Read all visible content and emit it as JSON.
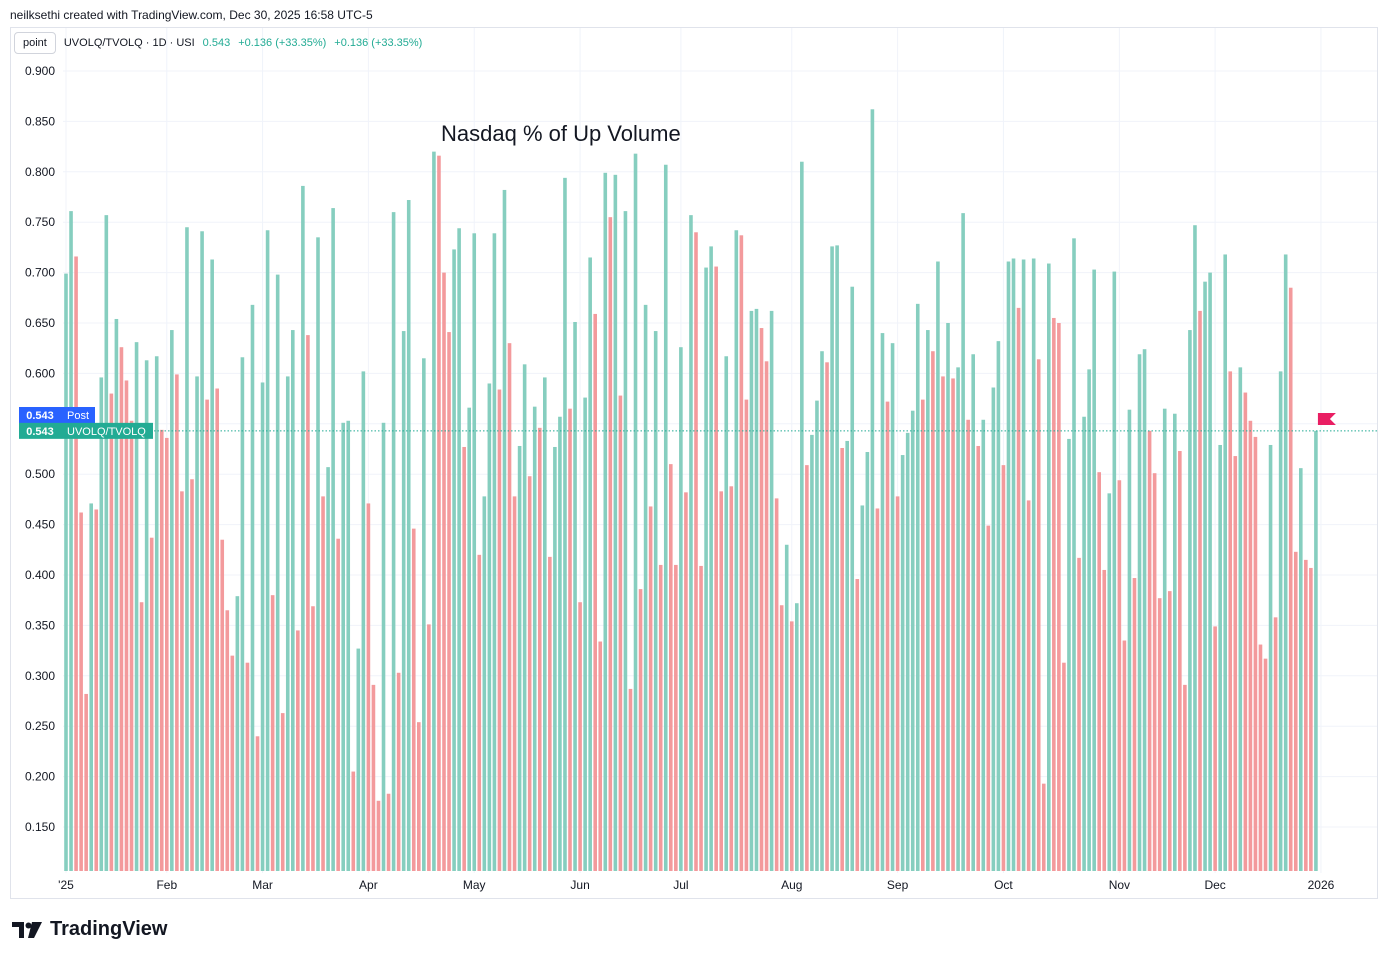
{
  "header": {
    "attribution": "neilksethi created with TradingView.com, Dec 30, 2025 16:58 UTC-5"
  },
  "legend": {
    "button": "point",
    "symbol": "UVOLQ/TVOLQ · 1D · USI",
    "value": "0.543",
    "change1": "+0.136 (+33.35%)",
    "change2": "+0.136 (+33.35%)"
  },
  "footer": {
    "brand": "TradingView"
  },
  "labels": {
    "post_value": "0.543",
    "post_label": "Post",
    "last_value": "0.543",
    "last_label": "UVOLQ/TVOLQ"
  },
  "colors": {
    "up": "#86cebf",
    "down": "#f39a9c",
    "last_line": "#22ab94",
    "post_badge": "#2962ff",
    "flag": "#e91e63"
  },
  "chart_data": {
    "type": "bar",
    "title": "Nasdaq % of Up Volume",
    "xlabel": "",
    "ylabel": "",
    "ylim": [
      0.11,
      0.91
    ],
    "y_ticks": [
      "0.900",
      "0.850",
      "0.800",
      "0.750",
      "0.700",
      "0.650",
      "0.600",
      "0.550",
      "0.500",
      "0.450",
      "0.400",
      "0.350",
      "0.300",
      "0.250",
      "0.200",
      "0.150"
    ],
    "x_ticks": [
      {
        "label": "'25",
        "index": 0
      },
      {
        "label": "Feb",
        "index": 20
      },
      {
        "label": "Mar",
        "index": 39
      },
      {
        "label": "Apr",
        "index": 60
      },
      {
        "label": "May",
        "index": 81
      },
      {
        "label": "Jun",
        "index": 102
      },
      {
        "label": "Jul",
        "index": 122
      },
      {
        "label": "Aug",
        "index": 144
      },
      {
        "label": "Sep",
        "index": 165
      },
      {
        "label": "Oct",
        "index": 186
      },
      {
        "label": "Nov",
        "index": 209
      },
      {
        "label": "Dec",
        "index": 228
      },
      {
        "label": "2026",
        "index": 249
      }
    ],
    "last_value": 0.543,
    "grid": true,
    "values": [
      0.699,
      0.761,
      0.716,
      0.462,
      0.282,
      0.471,
      0.465,
      0.596,
      0.757,
      0.58,
      0.654,
      0.626,
      0.593,
      0.553,
      0.631,
      0.373,
      0.613,
      0.437,
      0.617,
      0.544,
      0.536,
      0.643,
      0.599,
      0.483,
      0.745,
      0.495,
      0.597,
      0.741,
      0.574,
      0.713,
      0.585,
      0.435,
      0.365,
      0.32,
      0.379,
      0.616,
      0.313,
      0.668,
      0.24,
      0.591,
      0.742,
      0.38,
      0.698,
      0.263,
      0.597,
      0.643,
      0.345,
      0.786,
      0.638,
      0.369,
      0.735,
      0.478,
      0.507,
      0.764,
      0.436,
      0.551,
      0.553,
      0.205,
      0.327,
      0.602,
      0.471,
      0.291,
      0.176,
      0.551,
      0.183,
      0.76,
      0.303,
      0.642,
      0.772,
      0.446,
      0.254,
      0.615,
      0.351,
      0.82,
      0.816,
      0.7,
      0.641,
      0.723,
      0.744,
      0.527,
      0.566,
      0.739,
      0.42,
      0.478,
      0.59,
      0.739,
      0.584,
      0.782,
      0.63,
      0.478,
      0.528,
      0.609,
      0.498,
      0.567,
      0.546,
      0.596,
      0.418,
      0.527,
      0.557,
      0.794,
      0.565,
      0.651,
      0.373,
      0.576,
      0.715,
      0.659,
      0.334,
      0.799,
      0.755,
      0.797,
      0.578,
      0.761,
      0.287,
      0.818,
      0.386,
      0.668,
      0.468,
      0.642,
      0.41,
      0.807,
      0.51,
      0.41,
      0.626,
      0.482,
      0.757,
      0.74,
      0.409,
      0.705,
      0.726,
      0.706,
      0.483,
      0.617,
      0.488,
      0.742,
      0.737,
      0.574,
      0.662,
      0.664,
      0.645,
      0.612,
      0.662,
      0.476,
      0.37,
      0.43,
      0.354,
      0.372,
      0.81,
      0.509,
      0.539,
      0.573,
      0.622,
      0.611,
      0.726,
      0.727,
      0.526,
      0.533,
      0.686,
      0.396,
      0.469,
      0.522,
      0.862,
      0.466,
      0.64,
      0.572,
      0.63,
      0.478,
      0.519,
      0.541,
      0.563,
      0.669,
      0.574,
      0.643,
      0.622,
      0.711,
      0.597,
      0.65,
      0.595,
      0.606,
      0.759,
      0.554,
      0.619,
      0.528,
      0.554,
      0.449,
      0.586,
      0.632,
      0.509,
      0.711,
      0.714,
      0.665,
      0.713,
      0.474,
      0.714,
      0.614,
      0.193,
      0.709,
      0.655,
      0.65,
      0.313,
      0.535,
      0.734,
      0.417,
      0.557,
      0.604,
      0.703,
      0.502,
      0.405,
      0.481,
      0.701,
      0.494,
      0.335,
      0.564,
      0.397,
      0.619,
      0.624,
      0.543,
      0.501,
      0.377,
      0.565,
      0.384,
      0.56,
      0.523,
      0.291,
      0.643,
      0.747,
      0.662,
      0.691,
      0.7,
      0.349,
      0.529,
      0.718,
      0.602,
      0.518,
      0.606,
      0.581,
      0.553,
      0.537,
      0.331,
      0.317,
      0.529,
      0.358,
      0.602,
      0.718,
      0.685,
      0.423,
      0.506,
      0.415,
      0.407,
      0.543
    ]
  }
}
